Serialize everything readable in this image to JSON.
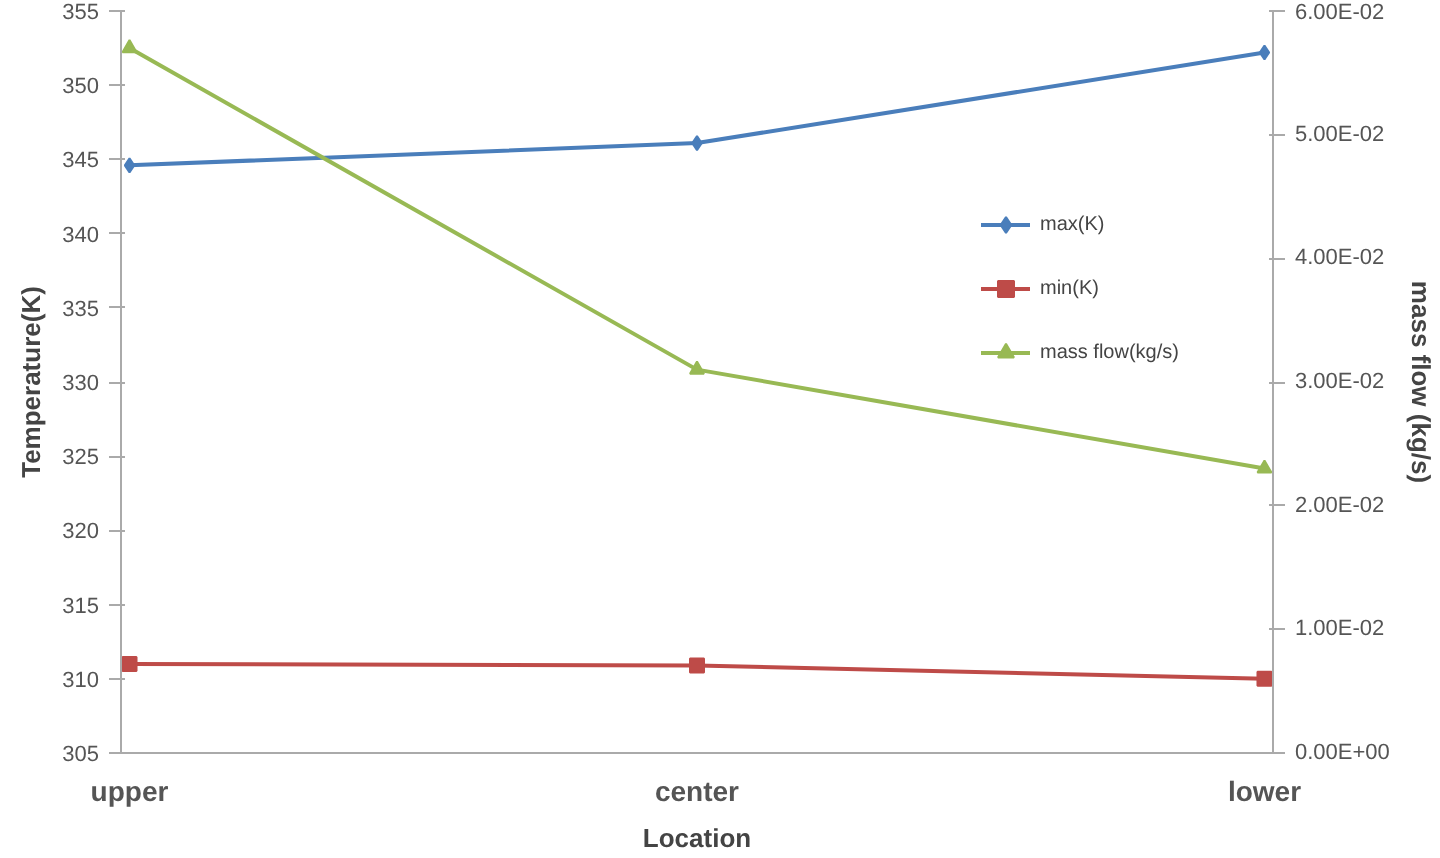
{
  "chart_data": {
    "type": "line",
    "xlabel": "Location",
    "ylabel": "Temperature(K)",
    "y2label": "mass flow (kg/s)",
    "categories": [
      "upper",
      "center",
      "lower"
    ],
    "series": [
      {
        "name": "max(K)",
        "color": "#4a7ebb",
        "values": [
          344.6,
          346.1,
          352.2
        ],
        "marker": "diamond"
      },
      {
        "name": "min(K)",
        "color": "#be4b48",
        "values": [
          311.0,
          310.9,
          310.0
        ],
        "marker": "square"
      },
      {
        "name": "mass flow(kg/s)",
        "color": "#98b954",
        "values": [
          0.057,
          0.031,
          0.023
        ],
        "marker": "triangle",
        "axis": "y2"
      }
    ],
    "ylim": [
      305,
      355
    ],
    "yticks": [
      305,
      310,
      315,
      320,
      325,
      330,
      335,
      340,
      345,
      350,
      355
    ],
    "y2lim": [
      0,
      0.06
    ],
    "y2ticks": [
      {
        "value": 0,
        "label": "0.00E+00"
      },
      {
        "value": 0.01,
        "label": "1.00E-02"
      },
      {
        "value": 0.02,
        "label": "2.00E-02"
      },
      {
        "value": 0.03,
        "label": "3.00E-02"
      },
      {
        "value": 0.04,
        "label": "4.00E-02"
      },
      {
        "value": 0.05,
        "label": "5.00E-02"
      },
      {
        "value": 0.06,
        "label": "6.00E-02"
      }
    ],
    "grid": false,
    "legend": "right",
    "line_style": "solid"
  }
}
